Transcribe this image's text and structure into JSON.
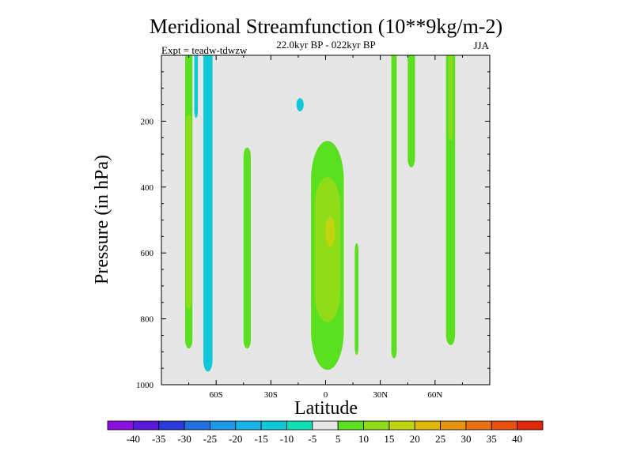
{
  "chart_data": {
    "type": "heatmap",
    "title": "Meridional Streamfunction (10**9kg/m-2)",
    "subtitle": "22.0kyr BP - 022kyr BP",
    "experiment": "Expt = teadw-tdwzw",
    "season": "JJA",
    "xlabel": "Latitude",
    "ylabel": "Pressure (in hPa)",
    "xlim": [
      -90,
      90
    ],
    "ylim": [
      1000,
      0
    ],
    "x_ticks": [
      {
        "value": -60,
        "label": "60S"
      },
      {
        "value": -30,
        "label": "30S"
      },
      {
        "value": 0,
        "label": "0"
      },
      {
        "value": 30,
        "label": "30N"
      },
      {
        "value": 60,
        "label": "60N"
      }
    ],
    "y_ticks": [
      {
        "value": 200,
        "label": "200"
      },
      {
        "value": 400,
        "label": "400"
      },
      {
        "value": 600,
        "label": "600"
      },
      {
        "value": 800,
        "label": "800"
      },
      {
        "value": 1000,
        "label": "1000"
      }
    ],
    "background_color": "#e6e6e6",
    "colorbar": {
      "levels": [
        -40,
        -35,
        -30,
        -25,
        -20,
        -15,
        -10,
        -5,
        5,
        10,
        15,
        20,
        25,
        30,
        35,
        40
      ],
      "colors": [
        "#8a10e0",
        "#5a18d8",
        "#2a3ad8",
        "#2070e0",
        "#1c98e8",
        "#18b4e8",
        "#10c8d8",
        "#10e0b8",
        "#e6e6e6",
        "#5ae020",
        "#90dc18",
        "#c0d410",
        "#e0b808",
        "#e69410",
        "#e87010",
        "#e85010",
        "#e02808"
      ]
    },
    "features": [
      {
        "name": "sh-green-band",
        "level": 5,
        "lat_range": [
          -77,
          -73
        ],
        "p_range": [
          0,
          890
        ]
      },
      {
        "name": "sh-yellow-core",
        "level": 10,
        "lat_range": [
          -76.5,
          -73.5
        ],
        "p_range": [
          180,
          770
        ]
      },
      {
        "name": "sh-cyan-column",
        "level": -10,
        "lat_range": [
          -67,
          -62
        ],
        "p_range": [
          0,
          960
        ]
      },
      {
        "name": "sh-cyan-thin",
        "level": -10,
        "lat_range": [
          -72,
          -70
        ],
        "p_range": [
          0,
          190
        ]
      },
      {
        "name": "midlat-green",
        "level": 5,
        "lat_range": [
          -45,
          -41
        ],
        "p_range": [
          280,
          890
        ]
      },
      {
        "name": "upper-cyan-blob",
        "level": -10,
        "lat_range": [
          -16,
          -12
        ],
        "p_range": [
          130,
          170
        ]
      },
      {
        "name": "eq-green-cell",
        "level": 5,
        "lat_range": [
          -8,
          10
        ],
        "p_range": [
          260,
          955
        ]
      },
      {
        "name": "eq-yellow-cell",
        "level": 10,
        "lat_range": [
          -6,
          8
        ],
        "p_range": [
          370,
          810
        ]
      },
      {
        "name": "eq-core",
        "level": 15,
        "lat_range": [
          0,
          5
        ],
        "p_range": [
          490,
          580
        ]
      },
      {
        "name": "nh-green-thin",
        "level": 5,
        "lat_range": [
          16,
          18
        ],
        "p_range": [
          570,
          910
        ]
      },
      {
        "name": "nh-green-30n",
        "level": 5,
        "lat_range": [
          36,
          39
        ],
        "p_range": [
          0,
          920
        ]
      },
      {
        "name": "nh-green-45n",
        "level": 5,
        "lat_range": [
          45,
          49
        ],
        "p_range": [
          0,
          340
        ]
      },
      {
        "name": "nh-green-65n",
        "level": 5,
        "lat_range": [
          66,
          71
        ],
        "p_range": [
          0,
          880
        ]
      },
      {
        "name": "nh-yellow-65n",
        "level": 10,
        "lat_range": [
          67.5,
          69.5
        ],
        "p_range": [
          0,
          260
        ]
      }
    ]
  }
}
